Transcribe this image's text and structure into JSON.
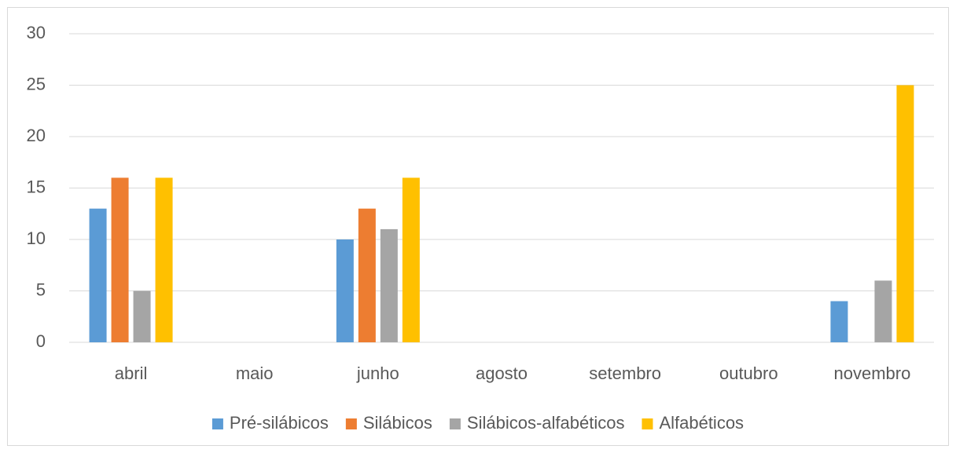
{
  "chart_data": {
    "type": "bar",
    "categories": [
      "abril",
      "maio",
      "junho",
      "agosto",
      "setembro",
      "outubro",
      "novembro"
    ],
    "series": [
      {
        "name": "Pré-silábicos",
        "color": "#5b9bd5",
        "values": [
          13,
          null,
          10,
          null,
          null,
          null,
          4
        ]
      },
      {
        "name": "Silábicos",
        "color": "#ed7d31",
        "values": [
          16,
          null,
          13,
          null,
          null,
          null,
          null
        ]
      },
      {
        "name": "Silábicos-alfabéticos",
        "color": "#a5a5a5",
        "values": [
          5,
          null,
          11,
          null,
          null,
          null,
          6
        ]
      },
      {
        "name": "Alfabéticos",
        "color": "#ffc000",
        "values": [
          16,
          null,
          16,
          null,
          null,
          null,
          25
        ]
      }
    ],
    "ylim": [
      0,
      30
    ],
    "yticks": [
      0,
      5,
      10,
      15,
      20,
      25,
      30
    ],
    "grid": true,
    "legend": "bottom"
  }
}
